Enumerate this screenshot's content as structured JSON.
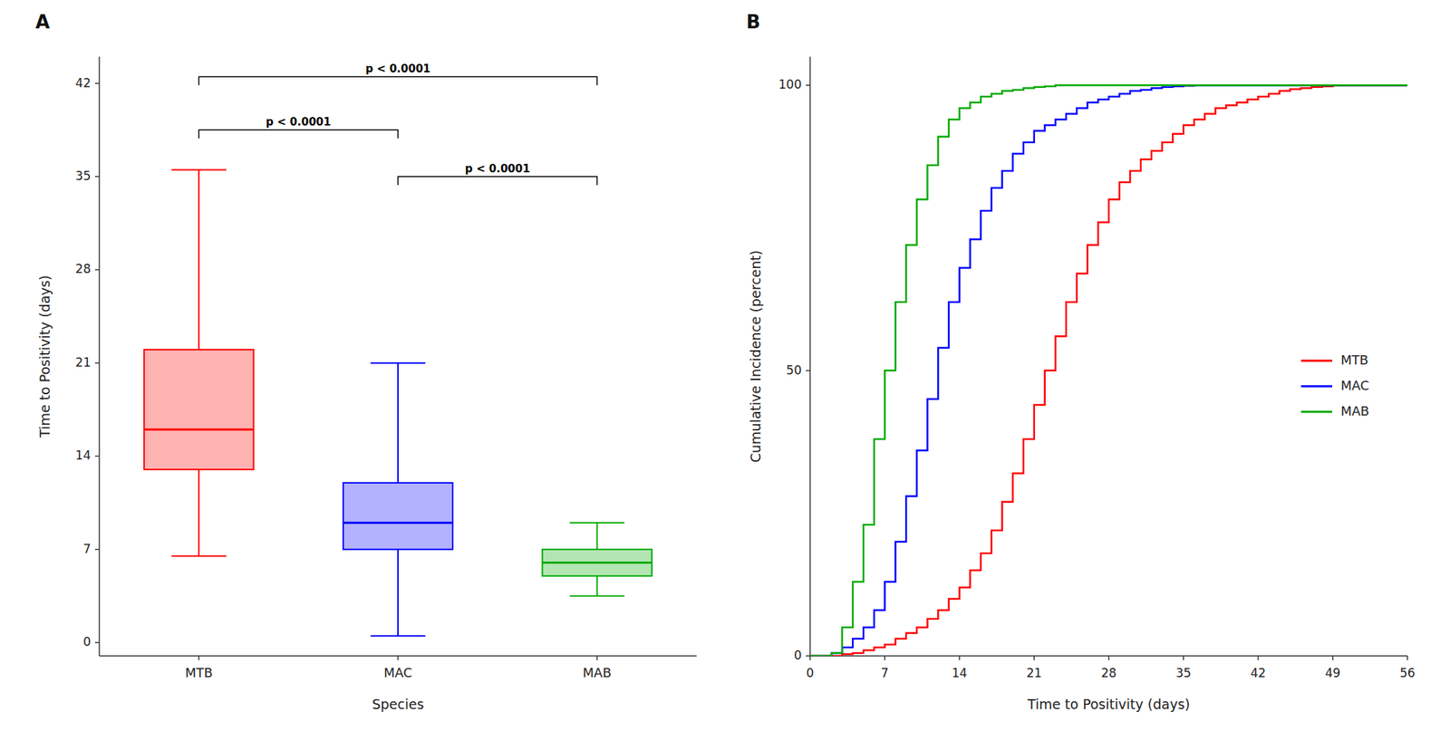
{
  "chart_data": [
    {
      "type": "box",
      "title": "A",
      "categories": [
        "MTB",
        "MAC",
        "MAB"
      ],
      "median": [
        16,
        9,
        6
      ],
      "q1": [
        13,
        7,
        5
      ],
      "q3": [
        22,
        12,
        7
      ],
      "whisker_low": [
        6.5,
        0.5,
        3.5
      ],
      "whisker_high": [
        35.5,
        21,
        9
      ],
      "colors": [
        "#FF0000",
        "#0000FF",
        "#00AA00"
      ],
      "xlabel": "Species",
      "ylabel": "Time to Positivity (days)",
      "ylim": [
        -1,
        44
      ],
      "yticks": [
        0,
        7,
        14,
        21,
        28,
        35,
        42
      ],
      "annotations": [
        {
          "from": "MTB",
          "to": "MAC",
          "y": 38.5,
          "label": "p < 0.0001"
        },
        {
          "from": "MTB",
          "to": "MAB",
          "y": 42.5,
          "label": "p < 0.0001"
        },
        {
          "from": "MAC",
          "to": "MAB",
          "y": 35.0,
          "label": "p < 0.0001"
        }
      ]
    },
    {
      "type": "step",
      "title": "B",
      "x": [
        0,
        1,
        2,
        3,
        4,
        5,
        6,
        7,
        8,
        9,
        10,
        11,
        12,
        13,
        14,
        15,
        16,
        17,
        18,
        19,
        20,
        21,
        22,
        23,
        24,
        25,
        26,
        27,
        28,
        29,
        30,
        31,
        32,
        33,
        34,
        35,
        36,
        37,
        38,
        39,
        40,
        41,
        42,
        43,
        44,
        45,
        46,
        47,
        48,
        49,
        50,
        51,
        52,
        53,
        54,
        55,
        56
      ],
      "series": [
        {
          "name": "MTB",
          "color": "#FF0000",
          "values": [
            0,
            0,
            0,
            0.3,
            0.5,
            1,
            1.5,
            2,
            3,
            4,
            5,
            6.5,
            8,
            10,
            12,
            15,
            18,
            22,
            27,
            32,
            38,
            44,
            50,
            56,
            62,
            67,
            72,
            76,
            80,
            83,
            85,
            87,
            88.5,
            90,
            91.5,
            93,
            94,
            95,
            96,
            96.5,
            97,
            97.5,
            98,
            98.5,
            99,
            99.3,
            99.5,
            99.7,
            99.8,
            100,
            100,
            100,
            100,
            100,
            100,
            100,
            100
          ]
        },
        {
          "name": "MAC",
          "color": "#0000FF",
          "values": [
            0,
            0,
            0.5,
            1.5,
            3,
            5,
            8,
            13,
            20,
            28,
            36,
            45,
            54,
            62,
            68,
            73,
            78,
            82,
            85,
            88,
            90,
            92,
            93,
            94,
            95,
            96,
            97,
            97.5,
            98,
            98.5,
            99,
            99.2,
            99.5,
            99.7,
            99.8,
            99.9,
            100,
            100,
            100,
            100,
            100,
            100,
            100,
            100,
            100,
            100,
            100,
            100,
            100,
            100,
            100,
            100,
            100,
            100,
            100,
            100,
            100
          ]
        },
        {
          "name": "MAB",
          "color": "#00AA00",
          "values": [
            0,
            0,
            0.5,
            5,
            13,
            23,
            38,
            50,
            62,
            72,
            80,
            86,
            91,
            94,
            96,
            97,
            98,
            98.5,
            99,
            99.2,
            99.5,
            99.7,
            99.8,
            100,
            100,
            100,
            100,
            100,
            100,
            100,
            100,
            100,
            100,
            100,
            100,
            100,
            100,
            100,
            100,
            100,
            100,
            100,
            100,
            100,
            100,
            100,
            100,
            100,
            100,
            100,
            100,
            100,
            100,
            100,
            100,
            100,
            100
          ]
        }
      ],
      "xlabel": "Time to Positivity (days)",
      "ylabel": "Cumulative Incidence (percent)",
      "xlim": [
        0,
        56
      ],
      "ylim": [
        0,
        105
      ],
      "xticks": [
        0,
        7,
        14,
        21,
        28,
        35,
        42,
        49,
        56
      ],
      "yticks": [
        0,
        50,
        100
      ],
      "legend": "right"
    }
  ]
}
